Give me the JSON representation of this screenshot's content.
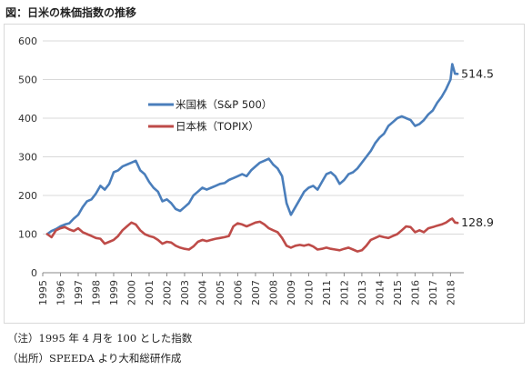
{
  "title": "図：日米の株価指数の推移",
  "notes": [
    "（注）1995 年 4 月を 100 とした指数",
    "（出所）SPEEDA より大和総研作成"
  ],
  "chart_data": {
    "type": "line",
    "title": "",
    "xlabel": "",
    "ylabel": "",
    "ylim": [
      0,
      600
    ],
    "yticks": [
      0,
      100,
      200,
      300,
      400,
      500,
      600
    ],
    "xlim": [
      1995.0,
      2018.75
    ],
    "xticks": [
      "1995",
      "1996",
      "1997",
      "1998",
      "1999",
      "2000",
      "2001",
      "2002",
      "2003",
      "2004",
      "2005",
      "2006",
      "2007",
      "2008",
      "2009",
      "2010",
      "2011",
      "2012",
      "2013",
      "2014",
      "2015",
      "2016",
      "2017",
      "2018"
    ],
    "grid": "horizontal",
    "legend_position": "upper-center",
    "series": [
      {
        "name": "米国株（S&P 500）",
        "color": "#4a7ebb",
        "end_label": "514.5",
        "x": [
          1995.25,
          1995.5,
          1995.75,
          1996.0,
          1996.25,
          1996.5,
          1996.75,
          1997.0,
          1997.25,
          1997.5,
          1997.75,
          1998.0,
          1998.25,
          1998.5,
          1998.75,
          1999.0,
          1999.25,
          1999.5,
          1999.75,
          2000.0,
          2000.25,
          2000.5,
          2000.75,
          2001.0,
          2001.25,
          2001.5,
          2001.75,
          2002.0,
          2002.25,
          2002.5,
          2002.75,
          2003.0,
          2003.25,
          2003.5,
          2003.75,
          2004.0,
          2004.25,
          2004.5,
          2004.75,
          2005.0,
          2005.25,
          2005.5,
          2005.75,
          2006.0,
          2006.25,
          2006.5,
          2006.75,
          2007.0,
          2007.25,
          2007.5,
          2007.75,
          2008.0,
          2008.25,
          2008.5,
          2008.75,
          2009.0,
          2009.25,
          2009.5,
          2009.75,
          2010.0,
          2010.25,
          2010.5,
          2010.75,
          2011.0,
          2011.25,
          2011.5,
          2011.75,
          2012.0,
          2012.25,
          2012.5,
          2012.75,
          2013.0,
          2013.25,
          2013.5,
          2013.75,
          2014.0,
          2014.25,
          2014.5,
          2014.75,
          2015.0,
          2015.25,
          2015.5,
          2015.75,
          2016.0,
          2016.25,
          2016.5,
          2016.75,
          2017.0,
          2017.25,
          2017.5,
          2017.75,
          2018.0,
          2018.1,
          2018.25,
          2018.4
        ],
        "values": [
          100,
          108,
          113,
          120,
          125,
          128,
          140,
          150,
          170,
          185,
          190,
          205,
          225,
          215,
          230,
          260,
          265,
          275,
          280,
          285,
          290,
          265,
          255,
          235,
          220,
          210,
          185,
          190,
          180,
          165,
          160,
          170,
          180,
          200,
          210,
          220,
          215,
          220,
          225,
          230,
          232,
          240,
          245,
          250,
          255,
          250,
          265,
          275,
          285,
          290,
          295,
          280,
          270,
          250,
          180,
          150,
          170,
          190,
          210,
          220,
          225,
          215,
          235,
          255,
          260,
          250,
          230,
          240,
          255,
          260,
          270,
          285,
          300,
          315,
          335,
          350,
          360,
          380,
          390,
          400,
          405,
          400,
          395,
          380,
          385,
          395,
          410,
          420,
          440,
          455,
          475,
          500,
          540,
          515,
          514.5
        ]
      },
      {
        "name": "日本株（TOPIX）",
        "color": "#be4b48",
        "end_label": "128.9",
        "x": [
          1995.25,
          1995.5,
          1995.75,
          1996.0,
          1996.25,
          1996.5,
          1996.75,
          1997.0,
          1997.25,
          1997.5,
          1997.75,
          1998.0,
          1998.25,
          1998.5,
          1998.75,
          1999.0,
          1999.25,
          1999.5,
          1999.75,
          2000.0,
          2000.25,
          2000.5,
          2000.75,
          2001.0,
          2001.25,
          2001.5,
          2001.75,
          2002.0,
          2002.25,
          2002.5,
          2002.75,
          2003.0,
          2003.25,
          2003.5,
          2003.75,
          2004.0,
          2004.25,
          2004.5,
          2004.75,
          2005.0,
          2005.25,
          2005.5,
          2005.75,
          2006.0,
          2006.25,
          2006.5,
          2006.75,
          2007.0,
          2007.25,
          2007.5,
          2007.75,
          2008.0,
          2008.25,
          2008.5,
          2008.75,
          2009.0,
          2009.25,
          2009.5,
          2009.75,
          2010.0,
          2010.25,
          2010.5,
          2010.75,
          2011.0,
          2011.25,
          2011.5,
          2011.75,
          2012.0,
          2012.25,
          2012.5,
          2012.75,
          2013.0,
          2013.25,
          2013.5,
          2013.75,
          2014.0,
          2014.25,
          2014.5,
          2014.75,
          2015.0,
          2015.25,
          2015.5,
          2015.75,
          2016.0,
          2016.25,
          2016.5,
          2016.75,
          2017.0,
          2017.25,
          2017.5,
          2017.75,
          2018.0,
          2018.1,
          2018.25,
          2018.4
        ],
        "values": [
          100,
          92,
          110,
          115,
          118,
          112,
          108,
          115,
          105,
          100,
          95,
          90,
          88,
          75,
          80,
          85,
          95,
          110,
          120,
          130,
          125,
          110,
          100,
          95,
          92,
          85,
          75,
          80,
          78,
          70,
          65,
          62,
          60,
          68,
          80,
          85,
          82,
          85,
          88,
          90,
          92,
          95,
          120,
          128,
          125,
          120,
          125,
          130,
          132,
          125,
          115,
          110,
          105,
          90,
          70,
          65,
          70,
          72,
          70,
          73,
          68,
          60,
          62,
          65,
          62,
          60,
          58,
          62,
          65,
          60,
          55,
          58,
          70,
          85,
          90,
          95,
          92,
          90,
          95,
          100,
          110,
          120,
          118,
          105,
          110,
          105,
          115,
          118,
          122,
          125,
          130,
          138,
          140,
          130,
          128.9
        ]
      }
    ]
  }
}
